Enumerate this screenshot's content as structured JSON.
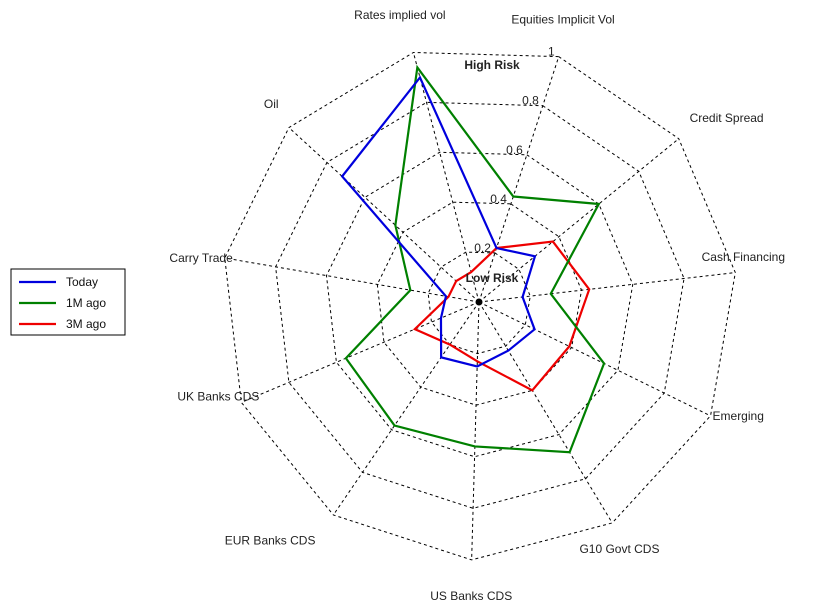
{
  "chart_data": {
    "type": "radar",
    "title": "",
    "axes": [
      "Equities Implicit Vol",
      "Credit Spread",
      "Cash Financing",
      "Emerging",
      "G10 Govt CDS",
      "US Banks CDS",
      "EUR Banks CDS",
      "UK Banks CDS",
      "Carry Trade",
      "Oil",
      "Rates implied vol"
    ],
    "rlim": [
      0,
      1
    ],
    "ticks": [
      "0.2",
      "0.4",
      "0.6",
      "0.8",
      "1"
    ],
    "tick_values": [
      0.2,
      0.4,
      0.6,
      0.8,
      1.0
    ],
    "grid": true,
    "zone_labels": {
      "high": "High Risk",
      "low": "Low Risk"
    },
    "legend_position": "left",
    "series": [
      {
        "name": "Today",
        "color": "#0000dd",
        "values": [
          0.22,
          0.28,
          0.17,
          0.24,
          0.22,
          0.25,
          0.26,
          0.16,
          0.13,
          0.72,
          0.9
        ]
      },
      {
        "name": "1M ago",
        "color": "#008000",
        "values": [
          0.43,
          0.6,
          0.28,
          0.54,
          0.68,
          0.56,
          0.58,
          0.56,
          0.27,
          0.44,
          0.94
        ]
      },
      {
        "name": "3M ago",
        "color": "#ee0000",
        "values": [
          0.22,
          0.37,
          0.43,
          0.39,
          0.4,
          0.23,
          0.2,
          0.27,
          0.12,
          0.12,
          0.12
        ]
      }
    ]
  }
}
